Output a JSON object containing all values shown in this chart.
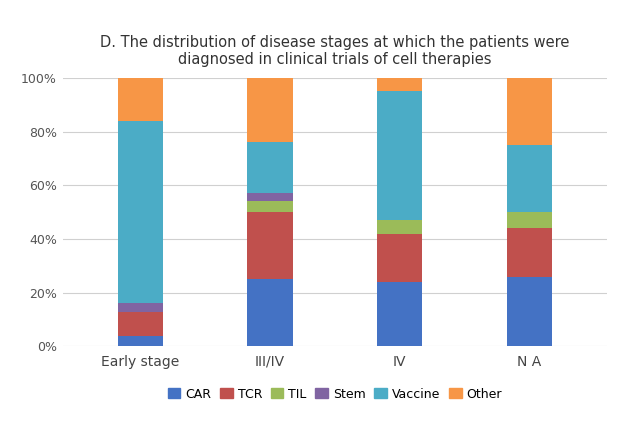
{
  "categories": [
    "Early stage",
    "III/IV",
    "IV",
    "N A"
  ],
  "series": {
    "CAR": [
      4,
      25,
      24,
      26
    ],
    "TCR": [
      9,
      25,
      18,
      18
    ],
    "TIL": [
      0,
      4,
      5,
      6
    ],
    "Stem": [
      3,
      3,
      0,
      0
    ],
    "Vaccine": [
      68,
      19,
      48,
      25
    ],
    "Other": [
      16,
      24,
      5,
      25
    ]
  },
  "colors": {
    "CAR": "#4472C4",
    "TCR": "#C0504D",
    "TIL": "#9BBB59",
    "Stem": "#8064A2",
    "Vaccine": "#4BACC6",
    "Other": "#F79646"
  },
  "title_line1": "D. The distribution of disease stages at which the patients were",
  "title_line2": "diagnosed in clinical trials of cell therapies",
  "ylim": [
    0,
    100
  ],
  "yticks": [
    0,
    20,
    40,
    60,
    80,
    100
  ],
  "ytick_labels": [
    "0%",
    "20%",
    "40%",
    "60%",
    "80%",
    "100%"
  ],
  "background_color": "#ffffff",
  "grid_color": "#d0d0d0",
  "legend_order": [
    "CAR",
    "TCR",
    "TIL",
    "Stem",
    "Vaccine",
    "Other"
  ],
  "bar_width": 0.35
}
